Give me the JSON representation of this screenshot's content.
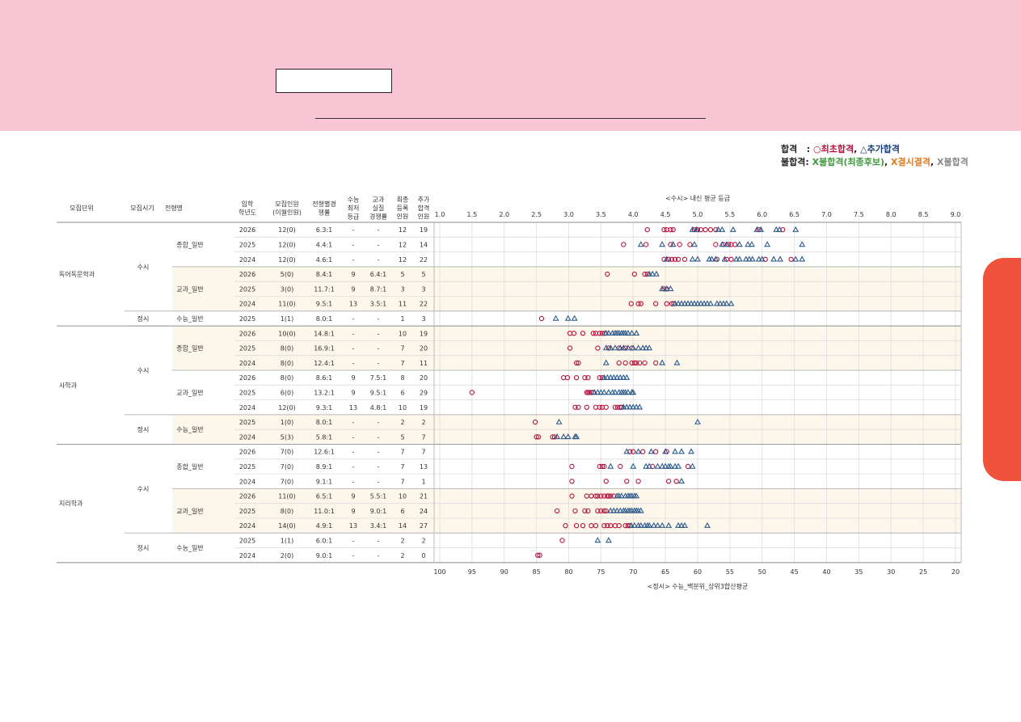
{
  "legend": {
    "pass_label": "합격",
    "colon": ":",
    "initial_pass": "○최초합격",
    "sep": ",",
    "additional_pass": "△추가합격",
    "fail_label": "불합격:",
    "fail_final_candidate": "X불합격(최종후보)",
    "fail_absent": "X결시결격",
    "fail": "X불합격"
  },
  "table": {
    "headers": [
      "모집단위",
      "모집시기",
      "전형명",
      "입학\n학년도",
      "모집인원\n(이월인원)",
      "전형별경\n쟁률",
      "수능\n최저\n등급",
      "교과\n실질\n경쟁률",
      "최종\n등록\n인원",
      "추가\n합격\n인원"
    ],
    "units": [
      {
        "name": "독어독문학과",
        "first_row": 0,
        "row_count": 7
      },
      {
        "name": "사학과",
        "first_row": 7,
        "row_count": 8
      },
      {
        "name": "지리학과",
        "first_row": 15,
        "row_count": 8
      }
    ],
    "periods": [
      {
        "name": "수시",
        "first_row": 0,
        "row_count": 6
      },
      {
        "name": "정시",
        "first_row": 6,
        "row_count": 1
      },
      {
        "name": "수시",
        "first_row": 7,
        "row_count": 6
      },
      {
        "name": "정시",
        "first_row": 13,
        "row_count": 2
      },
      {
        "name": "수시",
        "first_row": 15,
        "row_count": 6
      },
      {
        "name": "정시",
        "first_row": 21,
        "row_count": 2
      }
    ],
    "tracks": [
      {
        "name": "종합_일반",
        "first_row": 0,
        "row_count": 3,
        "shaded": false
      },
      {
        "name": "교과_일반",
        "first_row": 3,
        "row_count": 3,
        "shaded": true
      },
      {
        "name": "수능_일반",
        "first_row": 6,
        "row_count": 1,
        "shaded": false
      },
      {
        "name": "종합_일반",
        "first_row": 7,
        "row_count": 3,
        "shaded": true
      },
      {
        "name": "교과_일반",
        "first_row": 10,
        "row_count": 3,
        "shaded": false
      },
      {
        "name": "수능_일반",
        "first_row": 13,
        "row_count": 2,
        "shaded": true
      },
      {
        "name": "종합_일반",
        "first_row": 15,
        "row_count": 3,
        "shaded": false
      },
      {
        "name": "교과_일반",
        "first_row": 18,
        "row_count": 3,
        "shaded": true
      },
      {
        "name": "수능_일반",
        "first_row": 21,
        "row_count": 2,
        "shaded": false
      }
    ],
    "rows": [
      [
        "2026",
        "12(0)",
        "6.3:1",
        "-",
        "-",
        "12",
        "19"
      ],
      [
        "2025",
        "12(0)",
        "4.4:1",
        "-",
        "-",
        "12",
        "14"
      ],
      [
        "2024",
        "12(0)",
        "4.6:1",
        "-",
        "-",
        "12",
        "22"
      ],
      [
        "2026",
        "5(0)",
        "8.4:1",
        "9",
        "6.4:1",
        "5",
        "5"
      ],
      [
        "2025",
        "3(0)",
        "11.7:1",
        "9",
        "8.7:1",
        "3",
        "3"
      ],
      [
        "2024",
        "11(0)",
        "9.5:1",
        "13",
        "3.5:1",
        "11",
        "22"
      ],
      [
        "2025",
        "1(1)",
        "8.0:1",
        "-",
        "-",
        "1",
        "3"
      ],
      [
        "2026",
        "10(0)",
        "14.8:1",
        "-",
        "-",
        "10",
        "19"
      ],
      [
        "2025",
        "8(0)",
        "16.9:1",
        "-",
        "-",
        "7",
        "20"
      ],
      [
        "2024",
        "8(0)",
        "12.4:1",
        "-",
        "-",
        "7",
        "11"
      ],
      [
        "2026",
        "8(0)",
        "8.6:1",
        "9",
        "7.5:1",
        "8",
        "20"
      ],
      [
        "2025",
        "6(0)",
        "13.2:1",
        "9",
        "9.5:1",
        "6",
        "29"
      ],
      [
        "2024",
        "12(0)",
        "9.3:1",
        "13",
        "4.8:1",
        "10",
        "19"
      ],
      [
        "2025",
        "1(0)",
        "8.0:1",
        "-",
        "-",
        "2",
        "2"
      ],
      [
        "2024",
        "5(3)",
        "5.8:1",
        "-",
        "-",
        "5",
        "7"
      ],
      [
        "2026",
        "7(0)",
        "12.6:1",
        "-",
        "-",
        "7",
        "7"
      ],
      [
        "2025",
        "7(0)",
        "8.9:1",
        "-",
        "-",
        "7",
        "13"
      ],
      [
        "2024",
        "7(0)",
        "9.1:1",
        "-",
        "-",
        "7",
        "1"
      ],
      [
        "2026",
        "11(0)",
        "6.5:1",
        "9",
        "5.5:1",
        "10",
        "21"
      ],
      [
        "2025",
        "8(0)",
        "11.0:1",
        "9",
        "9.0:1",
        "6",
        "24"
      ],
      [
        "2024",
        "14(0)",
        "4.9:1",
        "13",
        "3.4:1",
        "14",
        "27"
      ],
      [
        "2025",
        "1(1)",
        "6.0:1",
        "-",
        "-",
        "2",
        "2"
      ],
      [
        "2024",
        "2(0)",
        "9.0:1",
        "-",
        "-",
        "2",
        "0"
      ]
    ]
  },
  "chart_data": {
    "type": "scatter",
    "title_top": "<수시> 내신 평균 등급",
    "title_bottom": "<정시> 수능_백분위_상위3합산평균",
    "x_top_ticks": [
      "1.0",
      "1.5",
      "2.0",
      "2.5",
      "3.0",
      "3.5",
      "4.0",
      "4.5",
      "5.0",
      "5.5",
      "6.0",
      "6.5",
      "7.0",
      "7.5",
      "8.0",
      "8.5",
      "9.0"
    ],
    "x_top_range": [
      1.0,
      9.0
    ],
    "x_bottom_ticks": [
      "100",
      "95",
      "90",
      "85",
      "80",
      "75",
      "70",
      "65",
      "60",
      "55",
      "50",
      "45",
      "40",
      "35",
      "30",
      "25",
      "20"
    ],
    "x_bottom_range": [
      100,
      20
    ],
    "grid": true,
    "series_colors": {
      "initial": "#b5123e",
      "additional": "#2d5b8c"
    },
    "rows": [
      {
        "scale": "grade",
        "initial": [
          4.22,
          4.48,
          4.52,
          4.58,
          4.62,
          4.95,
          5.0,
          5.05,
          5.12,
          5.2,
          5.28,
          5.95,
          6.32
        ],
        "additional": [
          4.92,
          4.98,
          5.32,
          5.38,
          5.55,
          5.92,
          5.98,
          6.22,
          6.27,
          6.52
        ]
      },
      {
        "scale": "grade",
        "initial": [
          3.85,
          4.2,
          4.58,
          4.72,
          4.88,
          5.28,
          5.4,
          5.48,
          5.52,
          5.58
        ],
        "additional": [
          4.12,
          4.45,
          4.62,
          4.95,
          5.38,
          5.45,
          5.65,
          5.78,
          5.84,
          6.08,
          6.62
        ]
      },
      {
        "scale": "grade",
        "initial": [
          4.48,
          4.55,
          4.6,
          4.65,
          4.7,
          4.8,
          5.3,
          5.45,
          5.52,
          6.05,
          6.45
        ],
        "additional": [
          4.52,
          4.92,
          5.0,
          5.18,
          5.22,
          5.28,
          5.42,
          5.6,
          5.65,
          5.75,
          5.8,
          5.85,
          5.95,
          6.0,
          6.18,
          6.28,
          6.52,
          6.62
        ]
      },
      {
        "scale": "grade",
        "initial": [
          3.6,
          4.02,
          4.18,
          4.22
        ],
        "additional": [
          4.25,
          4.3,
          4.36
        ]
      },
      {
        "scale": "grade",
        "initial": [
          4.48,
          4.52
        ],
        "additional": [
          4.45,
          4.52,
          4.58
        ]
      },
      {
        "scale": "grade",
        "initial": [
          3.97,
          4.08,
          4.12,
          4.35,
          4.52,
          4.6,
          4.63
        ],
        "additional": [
          4.65,
          4.7,
          4.75,
          4.8,
          4.85,
          4.9,
          4.95,
          5.0,
          5.05,
          5.1,
          5.15,
          5.2,
          5.3,
          5.35,
          5.4,
          5.45,
          5.52
        ]
      },
      {
        "scale": "percentile",
        "initial": [
          84.2
        ],
        "additional": [
          82.0,
          80.1,
          79.1
        ]
      },
      {
        "scale": "grade",
        "initial": [
          3.02,
          3.08,
          3.22,
          3.38,
          3.42,
          3.48,
          3.52,
          3.56
        ],
        "additional": [
          3.58,
          3.62,
          3.68,
          3.72,
          3.75,
          3.78,
          3.82,
          3.85,
          3.88,
          3.92,
          3.98,
          4.05
        ]
      },
      {
        "scale": "grade",
        "initial": [
          3.02,
          3.45,
          3.62,
          3.78,
          3.88,
          3.98
        ],
        "additional": [
          3.58,
          3.65,
          3.72,
          3.8,
          3.85,
          3.92,
          4.0,
          4.08,
          4.15,
          4.2,
          4.25
        ]
      },
      {
        "scale": "grade",
        "initial": [
          3.12,
          3.15,
          3.78,
          3.88,
          3.98,
          4.02,
          4.05,
          4.1,
          4.18,
          4.35
        ],
        "additional": [
          3.58,
          4.45,
          4.68
        ]
      },
      {
        "scale": "grade",
        "initial": [
          2.92,
          2.98,
          3.12,
          3.25,
          3.3,
          3.48,
          3.52
        ],
        "additional": [
          3.55,
          3.6,
          3.65,
          3.7,
          3.75,
          3.8,
          3.85,
          3.9
        ]
      },
      {
        "scale": "grade",
        "initial": [
          1.5,
          3.28,
          3.3,
          3.32,
          3.35,
          3.38
        ],
        "additional": [
          3.4,
          3.45,
          3.5,
          3.55,
          3.62,
          3.68,
          3.72,
          3.78,
          3.82,
          3.85,
          3.88,
          3.92,
          3.98,
          4.0
        ]
      },
      {
        "scale": "grade",
        "initial": [
          3.1,
          3.15,
          3.28,
          3.42,
          3.48,
          3.52,
          3.58,
          3.72,
          3.76,
          3.8,
          3.82
        ],
        "additional": [
          3.85,
          3.9,
          3.95,
          4.0,
          4.05,
          4.1
        ]
      },
      {
        "scale": "percentile",
        "initial": [
          85.2
        ],
        "additional": [
          81.5,
          60.0
        ]
      },
      {
        "scale": "percentile",
        "initial": [
          85.0,
          84.7,
          82.5,
          82.2
        ],
        "additional": [
          81.8,
          80.8,
          80.1,
          79.0,
          78.8
        ]
      },
      {
        "scale": "percentile",
        "initial": [
          70.5,
          70.0,
          68.5,
          66.5,
          64.8
        ],
        "additional": [
          71.0,
          69.2,
          67.2,
          65.0,
          63.5,
          62.5,
          61.0
        ]
      },
      {
        "scale": "percentile",
        "initial": [
          79.5,
          75.2,
          74.8,
          74.5,
          72.0,
          67.0,
          61.5
        ],
        "additional": [
          73.5,
          70.0,
          68.0,
          67.5,
          66.2,
          65.5,
          65.0,
          64.5,
          64.2,
          63.5,
          63.0,
          60.8
        ]
      },
      {
        "scale": "percentile",
        "initial": [
          79.5,
          74.2,
          71.0,
          69.2,
          64.5,
          63.3
        ],
        "additional": [
          62.5
        ]
      },
      {
        "scale": "grade",
        "initial": [
          3.05,
          3.28,
          3.35,
          3.42,
          3.45,
          3.5,
          3.55,
          3.6,
          3.62,
          3.65,
          3.7
        ],
        "additional": [
          3.75,
          3.78,
          3.82,
          3.88,
          3.92,
          3.95,
          3.98,
          4.02,
          4.05
        ]
      },
      {
        "scale": "grade",
        "initial": [
          2.82,
          3.1,
          3.25,
          3.3,
          3.45,
          3.5,
          3.55,
          3.58
        ],
        "additional": [
          3.65,
          3.7,
          3.75,
          3.8,
          3.85,
          3.88,
          3.92,
          3.95,
          3.98,
          4.02,
          4.05,
          4.08,
          4.12
        ]
      },
      {
        "scale": "grade",
        "initial": [
          2.95,
          3.12,
          3.22,
          3.35,
          3.42,
          3.55,
          3.6,
          3.65,
          3.72,
          3.78,
          3.88,
          3.92,
          3.95
        ],
        "additional": [
          3.97,
          4.02,
          4.08,
          4.12,
          4.18,
          4.22,
          4.25,
          4.32,
          4.38,
          4.45,
          4.55,
          4.7,
          4.75,
          4.8,
          5.15
        ]
      },
      {
        "scale": "percentile",
        "initial": [
          81.0
        ],
        "additional": [
          75.5,
          73.8
        ]
      },
      {
        "scale": "percentile",
        "initial": [
          84.8,
          84.5
        ],
        "additional": []
      }
    ]
  }
}
